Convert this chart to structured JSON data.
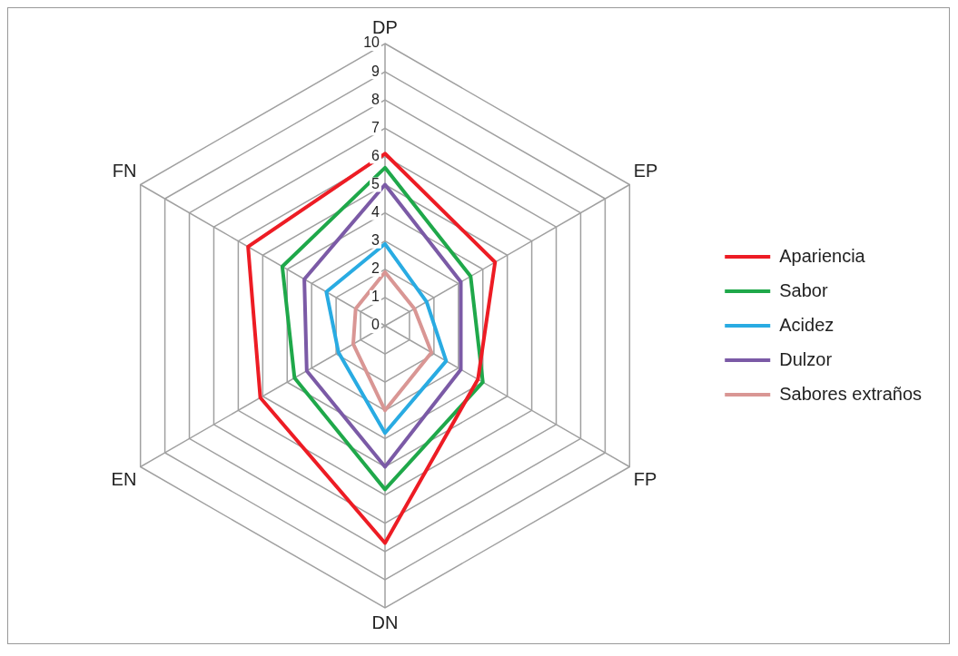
{
  "chart_data": {
    "type": "radar",
    "categories": [
      "DP",
      "EP",
      "FP",
      "DN",
      "EN",
      "FN"
    ],
    "series": [
      {
        "name": "Apariencia",
        "color": "#ed1c24",
        "values": [
          6.1,
          4.5,
          3.8,
          7.7,
          5.1,
          5.6
        ]
      },
      {
        "name": "Sabor",
        "color": "#1fa84a",
        "values": [
          5.6,
          3.5,
          4.0,
          5.8,
          3.7,
          4.2
        ]
      },
      {
        "name": "Acidez",
        "color": "#29abe2",
        "values": [
          2.9,
          1.7,
          2.5,
          3.8,
          1.9,
          2.4
        ]
      },
      {
        "name": "Dulzor",
        "color": "#7b5aa6",
        "values": [
          5.0,
          3.1,
          3.1,
          5.0,
          3.2,
          3.3
        ]
      },
      {
        "name": "Sabores extraños",
        "color": "#d99694",
        "values": [
          1.9,
          1.2,
          1.9,
          3.0,
          1.3,
          1.2
        ]
      }
    ],
    "ylim": [
      0,
      10
    ],
    "yticks": [
      0,
      1,
      2,
      3,
      4,
      5,
      6,
      7,
      8,
      9,
      10
    ],
    "grid": true,
    "legend": "right",
    "marker": "none",
    "line_style": "solid"
  }
}
